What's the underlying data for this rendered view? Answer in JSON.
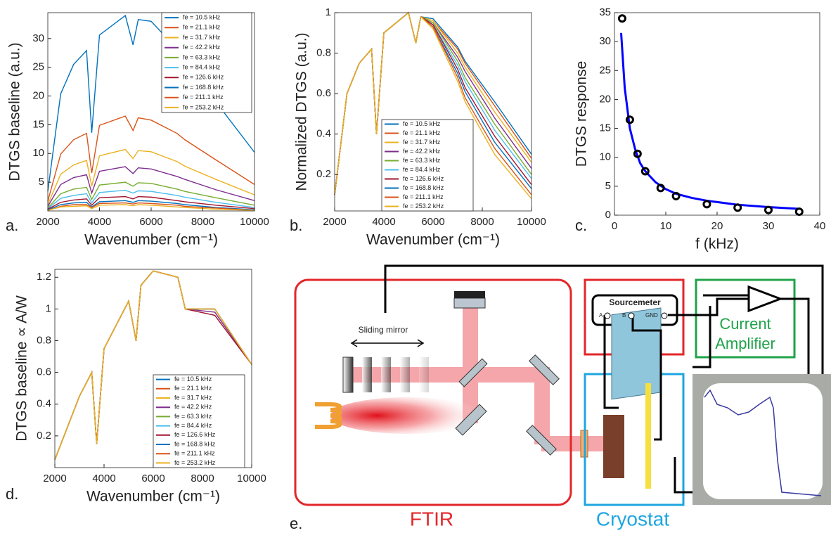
{
  "chart_data": [
    {
      "type": "line",
      "panel_label": "a.",
      "xlabel": "Wavenumber (cm⁻¹)",
      "ylabel": "DTGS baseline (a.u.)",
      "xlim": [
        2000,
        10000
      ],
      "ylim": [
        0,
        34.5
      ],
      "xticks": [
        2000,
        4000,
        6000,
        8000,
        10000
      ],
      "yticks": [
        5,
        10,
        15,
        20,
        25,
        30
      ],
      "x": [
        2000,
        2500,
        3000,
        3500,
        3700,
        4000,
        5000,
        5300,
        5500,
        6000,
        7000,
        7300,
        8500,
        10000
      ],
      "series": [
        {
          "name": "fe = 10.5 kHz",
          "color": "#0072BD",
          "values": [
            3.4,
            20.4,
            25.5,
            27.9,
            13.6,
            30.6,
            34,
            28.9,
            33.3,
            33,
            28.2,
            25.8,
            19,
            10.2
          ]
        },
        {
          "name": "fe = 21.1 kHz",
          "color": "#D95319",
          "values": [
            1.7,
            9.9,
            12.4,
            13.5,
            6.6,
            14.9,
            16.5,
            14,
            16.2,
            15.8,
            13.5,
            12.4,
            8.9,
            4.6
          ]
        },
        {
          "name": "fe = 31.7 kHz",
          "color": "#EDB120",
          "values": [
            1.1,
            6.4,
            8,
            8.8,
            4.3,
            9.6,
            10.7,
            9.1,
            10.5,
            10.3,
            8.6,
            7.8,
            5.5,
            2.8
          ]
        },
        {
          "name": "fe = 42.2 kHz",
          "color": "#7E2F8E",
          "values": [
            0.8,
            4.6,
            5.8,
            6.3,
            3.1,
            6.9,
            7.7,
            6.5,
            7.5,
            7.3,
            6,
            5.5,
            3.7,
            1.8
          ]
        },
        {
          "name": "fe = 63.3 kHz",
          "color": "#77AC30",
          "values": [
            0.5,
            3,
            3.8,
            4.1,
            2,
            4.5,
            5,
            4.3,
            4.9,
            4.8,
            3.8,
            3.4,
            2.3,
            1
          ]
        },
        {
          "name": "fe = 84.4 kHz",
          "color": "#4DBEEE",
          "values": [
            0.4,
            2.2,
            2.7,
            3,
            1.4,
            3.2,
            3.6,
            3.1,
            3.5,
            3.4,
            2.7,
            2.4,
            1.5,
            0.6
          ]
        },
        {
          "name": "fe = 126.6 kHz",
          "color": "#A2142F",
          "values": [
            0.3,
            1.5,
            1.9,
            2.1,
            1,
            2.3,
            2.5,
            2.1,
            2.5,
            2.4,
            1.8,
            1.6,
            1,
            0.4
          ]
        },
        {
          "name": "fe = 168.8 kHz",
          "color": "#0072BD",
          "values": [
            0.2,
            1.1,
            1.4,
            1.5,
            0.7,
            1.6,
            1.8,
            1.5,
            1.8,
            1.7,
            1.3,
            1.1,
            0.6,
            0.2
          ]
        },
        {
          "name": "fe = 211.1 kHz",
          "color": "#D95319",
          "values": [
            0.1,
            0.8,
            1.1,
            1.1,
            0.6,
            1.3,
            1.4,
            1.2,
            1.4,
            1.3,
            1,
            0.8,
            0.5,
            0.1
          ]
        },
        {
          "name": "fe = 253.2 kHz",
          "color": "#EDB120",
          "values": [
            0.1,
            0.7,
            0.8,
            0.9,
            0.4,
            1,
            1.1,
            0.9,
            1.1,
            1,
            0.7,
            0.6,
            0.3,
            0.1
          ]
        }
      ]
    },
    {
      "type": "line",
      "panel_label": "b.",
      "xlabel": "Wavenumber (cm⁻¹)",
      "ylabel": "Normalized DTGS (a.u.)",
      "xlim": [
        2000,
        10000
      ],
      "ylim": [
        0.02,
        1
      ],
      "xticks": [
        2000,
        4000,
        6000,
        8000,
        10000
      ],
      "yticks": [
        0.2,
        0.4,
        0.6,
        0.8,
        1
      ],
      "x": [
        2000,
        2500,
        3000,
        3500,
        3700,
        4000,
        5000,
        5300,
        5500,
        6000,
        7000,
        7300,
        8500,
        10000
      ],
      "series": [
        {
          "name": "fe = 10.5 kHz",
          "color": "#0072BD",
          "values": [
            0.1,
            0.6,
            0.75,
            0.82,
            0.4,
            0.9,
            1,
            0.85,
            0.98,
            0.97,
            0.83,
            0.76,
            0.56,
            0.3
          ]
        },
        {
          "name": "fe = 21.1 kHz",
          "color": "#D95319",
          "values": [
            0.1,
            0.6,
            0.75,
            0.82,
            0.4,
            0.9,
            1,
            0.85,
            0.98,
            0.96,
            0.82,
            0.75,
            0.54,
            0.28
          ]
        },
        {
          "name": "fe = 31.7 kHz",
          "color": "#EDB120",
          "values": [
            0.1,
            0.6,
            0.75,
            0.82,
            0.4,
            0.9,
            1,
            0.85,
            0.98,
            0.96,
            0.8,
            0.73,
            0.51,
            0.26
          ]
        },
        {
          "name": "fe = 42.2 kHz",
          "color": "#7E2F8E",
          "values": [
            0.1,
            0.6,
            0.75,
            0.82,
            0.4,
            0.9,
            1,
            0.85,
            0.98,
            0.95,
            0.78,
            0.71,
            0.48,
            0.23
          ]
        },
        {
          "name": "fe = 63.3 kHz",
          "color": "#77AC30",
          "values": [
            0.1,
            0.6,
            0.75,
            0.82,
            0.4,
            0.9,
            1,
            0.85,
            0.98,
            0.95,
            0.76,
            0.68,
            0.45,
            0.2
          ]
        },
        {
          "name": "fe = 84.4 kHz",
          "color": "#4DBEEE",
          "values": [
            0.1,
            0.6,
            0.75,
            0.82,
            0.4,
            0.9,
            1,
            0.85,
            0.98,
            0.94,
            0.74,
            0.66,
            0.42,
            0.18
          ]
        },
        {
          "name": "fe = 126.6 kHz",
          "color": "#A2142F",
          "values": [
            0.1,
            0.6,
            0.75,
            0.82,
            0.4,
            0.9,
            1,
            0.85,
            0.98,
            0.94,
            0.72,
            0.63,
            0.39,
            0.15
          ]
        },
        {
          "name": "fe = 168.8 kHz",
          "color": "#0072BD",
          "values": [
            0.1,
            0.6,
            0.75,
            0.82,
            0.4,
            0.9,
            1,
            0.85,
            0.98,
            0.93,
            0.7,
            0.61,
            0.36,
            0.13
          ]
        },
        {
          "name": "fe = 211.1 kHz",
          "color": "#D95319",
          "values": [
            0.1,
            0.6,
            0.75,
            0.82,
            0.4,
            0.9,
            1,
            0.85,
            0.98,
            0.93,
            0.68,
            0.58,
            0.33,
            0.1
          ]
        },
        {
          "name": "fe = 253.2 kHz",
          "color": "#EDB120",
          "values": [
            0.1,
            0.6,
            0.75,
            0.82,
            0.4,
            0.9,
            1,
            0.85,
            0.98,
            0.92,
            0.66,
            0.56,
            0.3,
            0.08
          ]
        }
      ]
    },
    {
      "type": "line",
      "panel_label": "c.",
      "xlabel": "f (kHz)",
      "ylabel": "DTGS response",
      "xlim": [
        0,
        40
      ],
      "ylim": [
        0,
        35
      ],
      "xticks": [
        0,
        10,
        20,
        30,
        40
      ],
      "yticks": [
        0,
        5,
        10,
        15,
        20,
        25,
        30,
        35
      ],
      "series": [
        {
          "type": "line",
          "color": "#0000ff",
          "x": [
            1.3,
            2,
            3,
            4,
            5,
            6,
            8,
            10,
            12,
            15,
            18,
            24,
            30,
            36
          ],
          "values": [
            31.5,
            22,
            15,
            11.5,
            9,
            7.6,
            5.7,
            4.5,
            3.7,
            3,
            2.5,
            1.8,
            1.4,
            1.1
          ]
        },
        {
          "type": "scatter",
          "color": "#000000",
          "x": [
            1.5,
            3,
            4.5,
            6,
            9,
            12,
            18,
            24,
            30,
            36
          ],
          "values": [
            34,
            16.5,
            10.6,
            7.6,
            4.7,
            3.3,
            1.9,
            1.3,
            0.9,
            0.6
          ]
        }
      ]
    },
    {
      "type": "line",
      "panel_label": "d.",
      "xlabel": "Wavenumber (cm⁻¹)",
      "ylabel": "DTGS baseline ∝ A/W",
      "xlim": [
        2000,
        10000
      ],
      "ylim": [
        0,
        1.25
      ],
      "xticks": [
        2000,
        4000,
        6000,
        8000,
        10000
      ],
      "yticks": [
        0.2,
        0.4,
        0.6,
        0.8,
        1,
        1.2
      ],
      "x": [
        2000,
        2500,
        3000,
        3500,
        3700,
        4000,
        5000,
        5300,
        5500,
        6000,
        7000,
        7300,
        8500,
        10000
      ],
      "series": [
        {
          "name": "fe = 10.5 kHz",
          "color": "#0072BD",
          "values": [
            0.05,
            0.25,
            0.45,
            0.6,
            0.15,
            0.75,
            1.05,
            0.8,
            1.15,
            1.24,
            1.2,
            1,
            1,
            0.65
          ]
        },
        {
          "name": "fe = 21.1 kHz",
          "color": "#D95319",
          "values": [
            0.05,
            0.25,
            0.45,
            0.6,
            0.15,
            0.75,
            1.05,
            0.8,
            1.15,
            1.24,
            1.2,
            1,
            1,
            0.65
          ]
        },
        {
          "name": "fe = 31.7 kHz",
          "color": "#EDB120",
          "values": [
            0.05,
            0.25,
            0.45,
            0.6,
            0.15,
            0.75,
            1.05,
            0.8,
            1.15,
            1.24,
            1.2,
            1,
            1,
            0.65
          ]
        },
        {
          "name": "fe = 42.2 kHz",
          "color": "#7E2F8E",
          "values": [
            0.05,
            0.25,
            0.45,
            0.6,
            0.15,
            0.75,
            1.05,
            0.8,
            1.15,
            1.24,
            1.2,
            1,
            0.98,
            0.65
          ]
        },
        {
          "name": "fe = 63.3 kHz",
          "color": "#77AC30",
          "values": [
            0.05,
            0.25,
            0.45,
            0.6,
            0.15,
            0.75,
            1.05,
            0.8,
            1.15,
            1.24,
            1.2,
            1,
            1,
            0.65
          ]
        },
        {
          "name": "fe = 84.4 kHz",
          "color": "#4DBEEE",
          "values": [
            0.05,
            0.25,
            0.45,
            0.6,
            0.15,
            0.75,
            1.05,
            0.8,
            1.15,
            1.24,
            1.2,
            1,
            1,
            0.65
          ]
        },
        {
          "name": "fe = 126.6 kHz",
          "color": "#A2142F",
          "values": [
            0.05,
            0.25,
            0.45,
            0.6,
            0.15,
            0.75,
            1.05,
            0.8,
            1.15,
            1.24,
            1.2,
            1,
            0.96,
            0.65
          ]
        },
        {
          "name": "fe = 168.8 kHz",
          "color": "#0072BD",
          "values": [
            0.05,
            0.25,
            0.45,
            0.6,
            0.15,
            0.75,
            1.05,
            0.8,
            1.15,
            1.24,
            1.2,
            1,
            1,
            0.65
          ]
        },
        {
          "name": "fe = 211.1 kHz",
          "color": "#D95319",
          "values": [
            0.05,
            0.25,
            0.45,
            0.6,
            0.15,
            0.75,
            1.05,
            0.8,
            1.15,
            1.24,
            1.2,
            1,
            1,
            0.65
          ]
        },
        {
          "name": "fe = 253.2 kHz",
          "color": "#EDB120",
          "values": [
            0.05,
            0.25,
            0.45,
            0.6,
            0.15,
            0.75,
            1.05,
            0.8,
            1.15,
            1.24,
            1.2,
            1,
            1,
            0.65
          ]
        }
      ]
    }
  ],
  "diagram": {
    "panel_label": "e.",
    "sliding_mirror": "Sliding mirror",
    "sourcemeter": {
      "title": "Sourcemeter",
      "terminals": [
        "A",
        "B",
        "GND"
      ]
    },
    "amplifier": [
      "Current",
      "Amplifier"
    ],
    "ftir": "FTIR",
    "cryostat": "Cryostat"
  }
}
